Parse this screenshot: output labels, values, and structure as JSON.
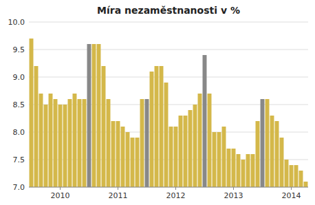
{
  "chart_data": {
    "type": "bar",
    "title": "Míra nezaměstnanosti v %",
    "categories": [
      null,
      null,
      null,
      null,
      null,
      null,
      "2010",
      null,
      null,
      null,
      null,
      null,
      null,
      null,
      null,
      null,
      null,
      null,
      "2011",
      null,
      null,
      null,
      null,
      null,
      null,
      null,
      null,
      null,
      null,
      null,
      "2012",
      null,
      null,
      null,
      null,
      null,
      null,
      null,
      null,
      null,
      null,
      null,
      "2013",
      null,
      null,
      null,
      null,
      null,
      null,
      null,
      null,
      null,
      null,
      null,
      "2014",
      null,
      null,
      null
    ],
    "values": [
      9.7,
      9.2,
      8.7,
      8.5,
      8.7,
      8.6,
      8.5,
      8.5,
      8.6,
      8.7,
      8.6,
      8.6,
      9.6,
      9.6,
      9.6,
      9.2,
      8.6,
      8.2,
      8.2,
      8.1,
      8.0,
      7.9,
      7.9,
      8.6,
      8.6,
      9.1,
      9.2,
      9.2,
      8.9,
      8.1,
      8.1,
      8.3,
      8.3,
      8.4,
      8.5,
      8.7,
      9.4,
      8.7,
      8.0,
      8.0,
      8.1,
      7.7,
      7.7,
      7.6,
      7.5,
      7.6,
      7.6,
      8.2,
      8.6,
      8.6,
      8.3,
      8.2,
      7.9,
      7.5,
      7.4,
      7.4,
      7.3,
      7.1
    ],
    "colors": [
      "#d4b84a",
      "#d4b84a",
      "#d4b84a",
      "#d4b84a",
      "#d4b84a",
      "#d4b84a",
      "#d4b84a",
      "#d4b84a",
      "#d4b84a",
      "#d4b84a",
      "#d4b84a",
      "#d4b84a",
      "#888888",
      "#d4b84a",
      "#d4b84a",
      "#d4b84a",
      "#d4b84a",
      "#d4b84a",
      "#d4b84a",
      "#d4b84a",
      "#d4b84a",
      "#d4b84a",
      "#d4b84a",
      "#d4b84a",
      "#888888",
      "#d4b84a",
      "#d4b84a",
      "#d4b84a",
      "#d4b84a",
      "#d4b84a",
      "#d4b84a",
      "#d4b84a",
      "#d4b84a",
      "#d4b84a",
      "#d4b84a",
      "#d4b84a",
      "#888888",
      "#d4b84a",
      "#d4b84a",
      "#d4b84a",
      "#d4b84a",
      "#d4b84a",
      "#d4b84a",
      "#d4b84a",
      "#d4b84a",
      "#d4b84a",
      "#d4b84a",
      "#d4b84a",
      "#888888",
      "#d4b84a",
      "#d4b84a",
      "#d4b84a",
      "#d4b84a",
      "#d4b84a",
      "#d4b84a",
      "#d4b84a",
      "#d4b84a",
      "#d4b84a"
    ],
    "ylim": [
      7,
      10
    ],
    "yticks": [
      {
        "value": 7,
        "label": "7.0"
      },
      7.5,
      {
        "value": 8,
        "label": "8.0"
      },
      8.5,
      {
        "value": 9,
        "label": "9.0"
      },
      9.5,
      {
        "value": 10,
        "label": "10.0"
      }
    ],
    "grid": true
  }
}
